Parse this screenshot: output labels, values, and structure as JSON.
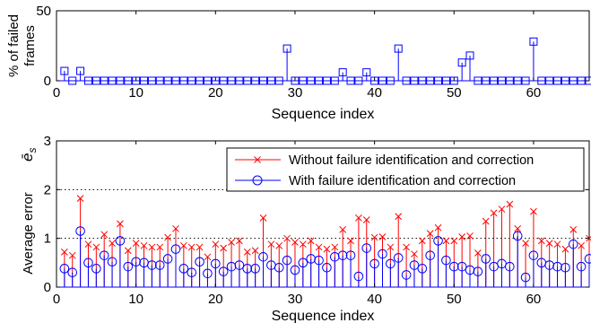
{
  "chart_data": [
    {
      "type": "stem",
      "xlabel": "Sequence index",
      "ylabel_lines": [
        "% of failed",
        "frames"
      ],
      "xlim": [
        0,
        67
      ],
      "ylim": [
        0,
        50
      ],
      "xticks": [
        0,
        10,
        20,
        30,
        40,
        50,
        60
      ],
      "yticks": [
        0,
        50
      ],
      "series": [
        {
          "color": "#0000ff",
          "marker": "square",
          "x": [
            1,
            2,
            3,
            4,
            5,
            6,
            7,
            8,
            9,
            10,
            11,
            12,
            13,
            14,
            15,
            16,
            17,
            18,
            19,
            20,
            21,
            22,
            23,
            24,
            25,
            26,
            27,
            28,
            29,
            30,
            31,
            32,
            33,
            34,
            35,
            36,
            37,
            38,
            39,
            40,
            41,
            42,
            43,
            44,
            45,
            46,
            47,
            48,
            49,
            50,
            51,
            52,
            53,
            54,
            55,
            56,
            57,
            58,
            59,
            60,
            61,
            62,
            63,
            64,
            65,
            66,
            67
          ],
          "values": [
            7,
            0,
            7,
            0,
            0,
            0,
            0,
            0,
            0,
            0,
            0,
            0,
            0,
            0,
            0,
            0,
            0,
            0,
            0,
            0,
            0,
            0,
            0,
            0,
            0,
            0,
            0,
            0,
            23,
            0,
            0,
            0,
            0,
            0,
            0,
            6,
            0,
            0,
            6,
            0,
            0,
            0,
            23,
            0,
            0,
            0,
            0,
            0,
            0,
            0,
            13,
            18,
            0,
            0,
            0,
            0,
            0,
            0,
            0,
            28,
            0,
            0,
            0,
            0,
            0,
            0,
            0
          ]
        }
      ]
    },
    {
      "type": "stem",
      "xlabel": "Sequence index",
      "ylabel": "Average error",
      "ylabel_symbol": "ē",
      "ylabel_sub": "s",
      "xlim": [
        0,
        67
      ],
      "ylim": [
        0,
        3
      ],
      "xticks": [
        0,
        10,
        20,
        30,
        40,
        50,
        60
      ],
      "yticks": [
        0,
        1,
        2,
        3
      ],
      "grid_y": [
        1,
        2
      ],
      "legend_position": "top-right",
      "series": [
        {
          "name": "Without failure identification and correction",
          "color": "#ff0000",
          "marker": "x",
          "x": [
            1,
            2,
            3,
            4,
            5,
            6,
            7,
            8,
            9,
            10,
            11,
            12,
            13,
            14,
            15,
            16,
            17,
            18,
            19,
            20,
            21,
            22,
            23,
            24,
            25,
            26,
            27,
            28,
            29,
            30,
            31,
            32,
            33,
            34,
            35,
            36,
            37,
            38,
            39,
            40,
            41,
            42,
            43,
            44,
            45,
            46,
            47,
            48,
            49,
            50,
            51,
            52,
            53,
            54,
            55,
            56,
            57,
            58,
            59,
            60,
            61,
            62,
            63,
            64,
            65,
            66,
            67
          ],
          "values": [
            0.72,
            0.65,
            1.82,
            0.88,
            0.82,
            1.08,
            0.9,
            1.3,
            0.75,
            0.9,
            0.85,
            0.82,
            0.82,
            1.02,
            1.2,
            0.85,
            0.82,
            0.82,
            0.62,
            0.88,
            0.8,
            0.92,
            0.95,
            0.72,
            0.75,
            1.42,
            0.88,
            0.85,
            1.0,
            0.92,
            0.88,
            0.95,
            0.82,
            0.78,
            0.82,
            1.18,
            0.95,
            1.42,
            1.38,
            1.02,
            1.03,
            0.82,
            1.45,
            0.82,
            0.68,
            0.95,
            1.1,
            1.22,
            0.95,
            0.95,
            1.03,
            1.05,
            0.7,
            1.35,
            1.52,
            1.6,
            1.7,
            1.2,
            0.9,
            1.55,
            0.95,
            0.9,
            0.88,
            0.78,
            1.18,
            0.85,
            1.0
          ]
        },
        {
          "name": "With failure identification and correction",
          "color": "#0000ff",
          "marker": "circle",
          "x": [
            1,
            2,
            3,
            4,
            5,
            6,
            7,
            8,
            9,
            10,
            11,
            12,
            13,
            14,
            15,
            16,
            17,
            18,
            19,
            20,
            21,
            22,
            23,
            24,
            25,
            26,
            27,
            28,
            29,
            30,
            31,
            32,
            33,
            34,
            35,
            36,
            37,
            38,
            39,
            40,
            41,
            42,
            43,
            44,
            45,
            46,
            47,
            48,
            49,
            50,
            51,
            52,
            53,
            54,
            55,
            56,
            57,
            58,
            59,
            60,
            61,
            62,
            63,
            64,
            65,
            66,
            67
          ],
          "values": [
            0.38,
            0.3,
            1.15,
            0.5,
            0.38,
            0.65,
            0.52,
            0.95,
            0.42,
            0.52,
            0.5,
            0.45,
            0.45,
            0.58,
            0.78,
            0.38,
            0.3,
            0.52,
            0.28,
            0.48,
            0.32,
            0.42,
            0.45,
            0.38,
            0.38,
            0.62,
            0.45,
            0.4,
            0.55,
            0.35,
            0.5,
            0.58,
            0.55,
            0.4,
            0.62,
            0.65,
            0.65,
            0.22,
            0.8,
            0.48,
            0.68,
            0.48,
            0.6,
            0.25,
            0.45,
            0.38,
            0.65,
            0.95,
            0.55,
            0.42,
            0.42,
            0.35,
            0.32,
            0.58,
            0.42,
            0.48,
            0.42,
            1.05,
            0.2,
            0.65,
            0.5,
            0.45,
            0.42,
            0.4,
            0.88,
            0.42,
            0.58
          ]
        }
      ]
    }
  ]
}
